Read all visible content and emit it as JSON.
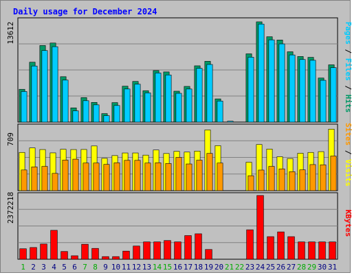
{
  "chart_data": {
    "type": "bar",
    "title": "Daily usage for December 2024",
    "days": [
      "1",
      "2",
      "3",
      "4",
      "5",
      "6",
      "7",
      "8",
      "9",
      "10",
      "11",
      "12",
      "13",
      "14",
      "15",
      "16",
      "17",
      "18",
      "19",
      "20",
      "21",
      "22",
      "23",
      "24",
      "25",
      "26",
      "27",
      "28",
      "29",
      "30",
      "31"
    ],
    "weekend_days": [
      "1",
      "7",
      "8",
      "14",
      "15",
      "21",
      "22",
      "28",
      "29"
    ],
    "panels": [
      {
        "name": "hits-files-pages",
        "max_label": "13612",
        "ymax": 13612,
        "legend": [
          "Pages",
          "Files",
          "Hits"
        ],
        "series": [
          {
            "name": "Hits",
            "color": "#009966",
            "values": [
              4395,
              8030,
              10268,
              10601,
              6087,
              1905,
              3286,
              2635,
              1136,
              2613,
              4814,
              5452,
              4211,
              6905,
              6725,
              4141,
              4785,
              7546,
              8150,
              3111,
              0,
              0,
              9154,
              13440,
              11445,
              11007,
              9431,
              8795,
              8682,
              5908,
              7680
            ]
          },
          {
            "name": "Files",
            "color": "#00ccff",
            "values": [
              4100,
              7520,
              9590,
              10111,
              5631,
              1507,
              2868,
              2313,
              862,
              2227,
              4437,
              5081,
              3913,
              6583,
              6319,
              3861,
              4433,
              7208,
              7726,
              2822,
              120,
              0,
              8700,
              13140,
              11026,
              10483,
              9004,
              8393,
              8290,
              5605,
              7299
            ]
          },
          {
            "name": "Pages",
            "color": "#00ccff",
            "values": [
              0,
              0,
              0,
              0,
              0,
              0,
              0,
              0,
              0,
              0,
              0,
              0,
              0,
              0,
              0,
              0,
              0,
              0,
              0,
              0,
              0,
              0,
              0,
              0,
              0,
              0,
              0,
              0,
              0,
              0,
              0
            ]
          }
        ]
      },
      {
        "name": "visits-sites",
        "max_label": "709",
        "ymax": 709,
        "legend": [
          "Sites",
          "Visits"
        ],
        "series": [
          {
            "name": "Visits",
            "color": "#ffff00",
            "values": [
              425,
              475,
              457,
              420,
              460,
              457,
              458,
              497,
              359,
              390,
              419,
              419,
              395,
              452,
              413,
              437,
              429,
              440,
              675,
              500,
              0,
              0,
              316,
              513,
              462,
              377,
              357,
              416,
              425,
              434,
              684
            ]
          },
          {
            "name": "Sites",
            "color": "#ff9900",
            "values": [
              230,
              264,
              270,
              192,
              340,
              350,
              307,
              307,
              292,
              310,
              337,
              337,
              307,
              310,
              302,
              370,
              297,
              339,
              414,
              307,
              0,
              0,
              166,
              229,
              270,
              242,
              211,
              232,
              290,
              287,
              385
            ]
          }
        ]
      },
      {
        "name": "kbytes",
        "max_label": "2372218",
        "ymax": 2372218,
        "legend": [
          "KBytes"
        ],
        "series": [
          {
            "name": "KBytes",
            "color": "#ff0000",
            "values": [
              390000,
              436000,
              566000,
              1075000,
              288000,
              129000,
              557000,
              403000,
              98000,
              98000,
              302000,
              491000,
              645000,
              645000,
              696000,
              645000,
              880000,
              946000,
              363000,
              0,
              0,
              0,
              1095000,
              2372218,
              840000,
              1017000,
              840000,
              645000,
              645000,
              645000,
              645000
            ]
          }
        ]
      }
    ],
    "colors": {
      "background": "#c0c0c0",
      "title": "#0000ff",
      "weekday_label": "#000080",
      "weekend_label": "#00aa00"
    }
  }
}
